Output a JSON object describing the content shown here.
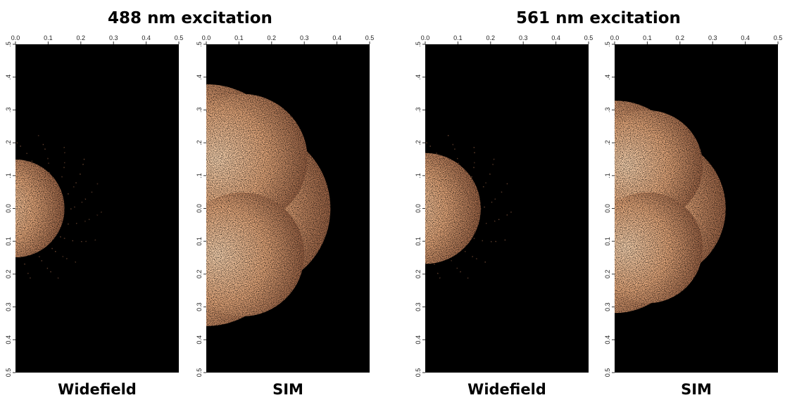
{
  "figure": {
    "groups": [
      {
        "title": "488 nm excitation",
        "panels": [
          {
            "label": "Widefield",
            "xlim": [
              0,
              0.5
            ],
            "ylim": [
              -0.5,
              0.5
            ],
            "xticks": [
              {
                "value": 0,
                "label": "0.0"
              },
              0.1,
              0.2,
              0.3,
              0.4,
              0.5
            ],
            "yticks": [
              {
                "value": 0.5,
                "label": ".5"
              },
              {
                "value": 0.4,
                "label": ".4"
              },
              {
                "value": 0.3,
                "label": ".3"
              },
              {
                "value": 0.2,
                "label": ".2"
              },
              {
                "value": 0.1,
                "label": ".1"
              },
              {
                "value": 0,
                "label": "0.0"
              },
              {
                "value": -0.1,
                "label": "0.1"
              },
              {
                "value": -0.2,
                "label": "0.2"
              },
              {
                "value": -0.3,
                "label": "0.3"
              },
              {
                "value": -0.4,
                "label": "0.4"
              },
              {
                "value": -0.5,
                "label": "0.5"
              }
            ]
          },
          {
            "label": "SIM",
            "xlim": [
              0,
              0.5
            ],
            "ylim": [
              -0.5,
              0.5
            ],
            "xticks": [
              {
                "value": 0,
                "label": "0.0"
              },
              0.1,
              0.2,
              0.3,
              0.4,
              0.5
            ],
            "yticks": [
              {
                "value": 0.5,
                "label": ".5"
              },
              {
                "value": 0.4,
                "label": ".4"
              },
              {
                "value": 0.3,
                "label": ".3"
              },
              {
                "value": 0.2,
                "label": ".2"
              },
              {
                "value": 0.1,
                "label": ".1"
              },
              {
                "value": 0,
                "label": "0.0"
              },
              {
                "value": -0.1,
                "label": "0.1"
              },
              {
                "value": -0.2,
                "label": "0.2"
              },
              {
                "value": -0.3,
                "label": "0.3"
              },
              {
                "value": -0.4,
                "label": "0.4"
              },
              {
                "value": -0.5,
                "label": "0.5"
              }
            ]
          }
        ]
      },
      {
        "title": "561 nm excitation",
        "panels": [
          {
            "label": "Widefield",
            "xlim": [
              0,
              0.5
            ],
            "ylim": [
              -0.5,
              0.5
            ],
            "xticks": [
              {
                "value": 0,
                "label": "0.0"
              },
              0.1,
              0.2,
              0.3,
              0.4,
              0.5
            ],
            "yticks": [
              {
                "value": 0.5,
                "label": ".5"
              },
              {
                "value": 0.4,
                "label": ".4"
              },
              {
                "value": 0.3,
                "label": ".3"
              },
              {
                "value": 0.2,
                "label": ".2"
              },
              {
                "value": 0.1,
                "label": ".1"
              },
              {
                "value": 0,
                "label": "0.0"
              },
              {
                "value": -0.1,
                "label": "0.1"
              },
              {
                "value": -0.2,
                "label": "0.2"
              },
              {
                "value": -0.3,
                "label": "0.3"
              },
              {
                "value": -0.4,
                "label": "0.4"
              },
              {
                "value": -0.5,
                "label": "0.5"
              }
            ]
          },
          {
            "label": "SIM",
            "xlim": [
              0,
              0.5
            ],
            "ylim": [
              -0.5,
              0.5
            ],
            "xticks": [
              {
                "value": 0,
                "label": "0.0"
              },
              0.1,
              0.2,
              0.3,
              0.4,
              0.5
            ],
            "yticks": [
              {
                "value": 0.5,
                "label": ".5"
              },
              {
                "value": 0.4,
                "label": ".4"
              },
              {
                "value": 0.3,
                "label": ".3"
              },
              {
                "value": 0.2,
                "label": ".2"
              },
              {
                "value": 0.1,
                "label": ".1"
              },
              {
                "value": 0,
                "label": "0.0"
              },
              {
                "value": -0.1,
                "label": "0.1"
              },
              {
                "value": -0.2,
                "label": "0.2"
              },
              {
                "value": -0.3,
                "label": "0.3"
              },
              {
                "value": -0.4,
                "label": "0.4"
              },
              {
                "value": -0.5,
                "label": "0.5"
              }
            ]
          }
        ]
      }
    ]
  }
}
